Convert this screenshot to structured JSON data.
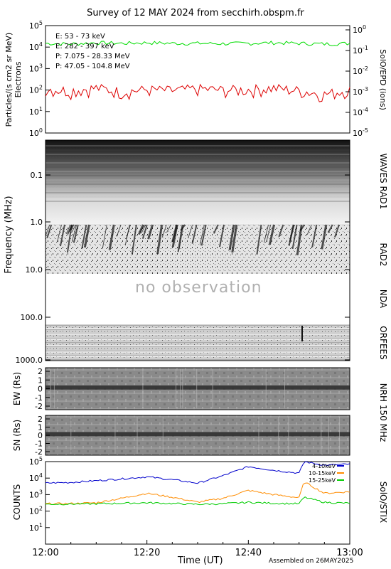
{
  "title": "Survey of 12 MAY 2024 from secchirh.obspm.fr",
  "footer": {
    "xlabel": "Time (UT)",
    "assembled": "Assembled on 26MAY2025",
    "x_ticks": [
      "12:00",
      "12:20",
      "12:40",
      "13:00"
    ]
  },
  "epd": {
    "ylabel": "Particles/(s cm2 sr MeV)",
    "ylabel2": "Electrons",
    "right_label": "SolO/EPD (ions)",
    "legend": [
      {
        "text": "E: 53 - 73 keV",
        "color": "#00dd00"
      },
      {
        "text": "E: 282 - 397 keV",
        "color": "#dd0000"
      },
      {
        "text": "P: 7.075 - 28.33 MeV",
        "color": "#000000"
      },
      {
        "text": "P: 47.05 - 104.8 MeV",
        "color": "#0000cc"
      }
    ],
    "y_ticks": [
      "10^5",
      "10^4",
      "10^3",
      "10^2",
      "10^1",
      "10^0"
    ],
    "y2_ticks": [
      "10^0",
      "10^-1",
      "10^-2",
      "10^-3",
      "10^-4",
      "10^-5"
    ]
  },
  "radio": {
    "ylabel": "Frequency (MHz)",
    "y_ticks": [
      "0.1",
      "1.0",
      "10.0",
      "100.0",
      "1000.0"
    ],
    "no_obs": "no observation",
    "labels": [
      "WAVES RAD1",
      "RAD2",
      "NDA",
      "ORFEES"
    ]
  },
  "nrh": {
    "ew_label": "EW (Rs)",
    "sn_label": "SN (Rs)",
    "right_label": "NRH 150 MHz",
    "ew_ticks": [
      "2",
      "1",
      "0",
      "-1",
      "-2"
    ],
    "sn_ticks": [
      "2",
      "1",
      "0",
      "-1",
      "-2"
    ]
  },
  "stix": {
    "ylabel": "COUNTS",
    "right_label": "SolO/STIX",
    "y_ticks": [
      "10^5",
      "10^4",
      "10^3",
      "10^2",
      "10^1"
    ],
    "legend": [
      {
        "text": "4-10keV",
        "color": "#0000cc"
      },
      {
        "text": "10-15keV",
        "color": "#ff8c00"
      },
      {
        "text": "15-25keV",
        "color": "#00cc00"
      }
    ]
  },
  "chart_data": [
    {
      "type": "line",
      "panel": "SolO/EPD",
      "x_range": [
        "12:00",
        "13:00"
      ],
      "ylim": [
        1,
        100000
      ],
      "yscale": "log",
      "series": [
        {
          "name": "E: 53 - 73 keV",
          "color": "#00dd00",
          "x": [
            "12:00",
            "12:05",
            "12:10",
            "12:15",
            "12:20",
            "12:25",
            "12:30",
            "12:35",
            "12:40",
            "12:45",
            "12:50",
            "12:55",
            "13:00"
          ],
          "values": [
            15000,
            14000,
            16000,
            15000,
            16000,
            15000,
            15000,
            14500,
            15000,
            16000,
            15000,
            14000,
            15000
          ]
        },
        {
          "name": "E: 282 - 397 keV",
          "color": "#dd0000",
          "x": [
            "12:00",
            "12:05",
            "12:10",
            "12:15",
            "12:20",
            "12:25",
            "12:30",
            "12:35",
            "12:40",
            "12:45",
            "12:50",
            "12:55",
            "13:00"
          ],
          "values": [
            110,
            90,
            120,
            80,
            100,
            90,
            110,
            95,
            100,
            120,
            90,
            60,
            100
          ]
        }
      ]
    },
    {
      "type": "line",
      "panel": "SolO/STIX",
      "x_range": [
        "12:00",
        "13:00"
      ],
      "ylim": [
        1,
        100000
      ],
      "yscale": "log",
      "series": [
        {
          "name": "4-10keV",
          "color": "#0000cc",
          "x": [
            "12:00",
            "12:05",
            "12:10",
            "12:15",
            "12:20",
            "12:25",
            "12:30",
            "12:35",
            "12:40",
            "12:45",
            "12:50",
            "12:51",
            "12:55",
            "13:00"
          ],
          "values": [
            5000,
            5500,
            7000,
            9000,
            12000,
            8000,
            5000,
            14000,
            50000,
            30000,
            20000,
            100000,
            60000,
            70000
          ]
        },
        {
          "name": "10-15keV",
          "color": "#ff8c00",
          "x": [
            "12:00",
            "12:05",
            "12:10",
            "12:15",
            "12:20",
            "12:25",
            "12:30",
            "12:35",
            "12:40",
            "12:45",
            "12:50",
            "12:51",
            "12:55",
            "13:00"
          ],
          "values": [
            280,
            290,
            320,
            600,
            1200,
            700,
            350,
            600,
            1800,
            1000,
            650,
            6000,
            1200,
            1500
          ]
        },
        {
          "name": "15-25keV",
          "color": "#00cc00",
          "x": [
            "12:00",
            "12:05",
            "12:10",
            "12:15",
            "12:20",
            "12:25",
            "12:30",
            "12:35",
            "12:40",
            "12:45",
            "12:50",
            "12:51",
            "12:55",
            "13:00"
          ],
          "values": [
            260,
            270,
            280,
            300,
            320,
            290,
            260,
            280,
            340,
            300,
            280,
            700,
            340,
            300
          ]
        }
      ]
    }
  ]
}
